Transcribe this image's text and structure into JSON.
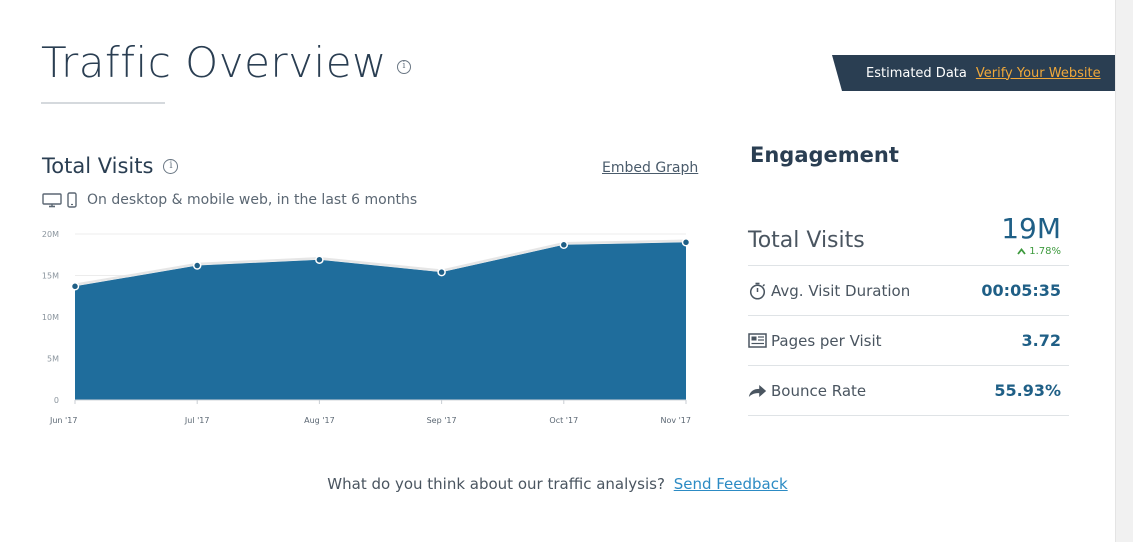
{
  "page": {
    "title": "Traffic Overview"
  },
  "banner": {
    "label": "Estimated Data",
    "link": "Verify Your Website"
  },
  "total_visits_panel": {
    "title": "Total Visits",
    "embed_link": "Embed Graph",
    "subtitle": "On desktop & mobile web, in the last 6 months"
  },
  "chart_data": {
    "type": "area",
    "categories": [
      "Jun '17",
      "Jul '17",
      "Aug '17",
      "Sep '17",
      "Oct '17",
      "Nov '17"
    ],
    "values": [
      13700000,
      16200000,
      16900000,
      15400000,
      18700000,
      19000000
    ],
    "y_ticks": [
      "0",
      "5M",
      "10M",
      "15M",
      "20M"
    ],
    "ylim": [
      0,
      20000000
    ],
    "grid": true,
    "fill_color": "#1f6d9c",
    "line_color": "#e6e6e6",
    "point_color": "#1f5f86"
  },
  "engagement": {
    "title": "Engagement",
    "total_visits": {
      "label": "Total Visits",
      "value": "19M",
      "change": "1.78%"
    },
    "avg_visit_duration": {
      "label": "Avg. Visit Duration",
      "value": "00:05:35",
      "icon": "stopwatch-icon"
    },
    "pages_per_visit": {
      "label": "Pages per Visit",
      "value": "3.72",
      "icon": "pages-icon"
    },
    "bounce_rate": {
      "label": "Bounce Rate",
      "value": "55.93%",
      "icon": "bounce-arrow-icon"
    }
  },
  "feedback": {
    "question": "What do you think about our traffic analysis?",
    "link": "Send Feedback"
  },
  "colors": {
    "accent": "#1f5f86",
    "positive": "#3e9a3e",
    "banner_bg": "#2a3e52",
    "banner_link": "#f0a83a"
  }
}
